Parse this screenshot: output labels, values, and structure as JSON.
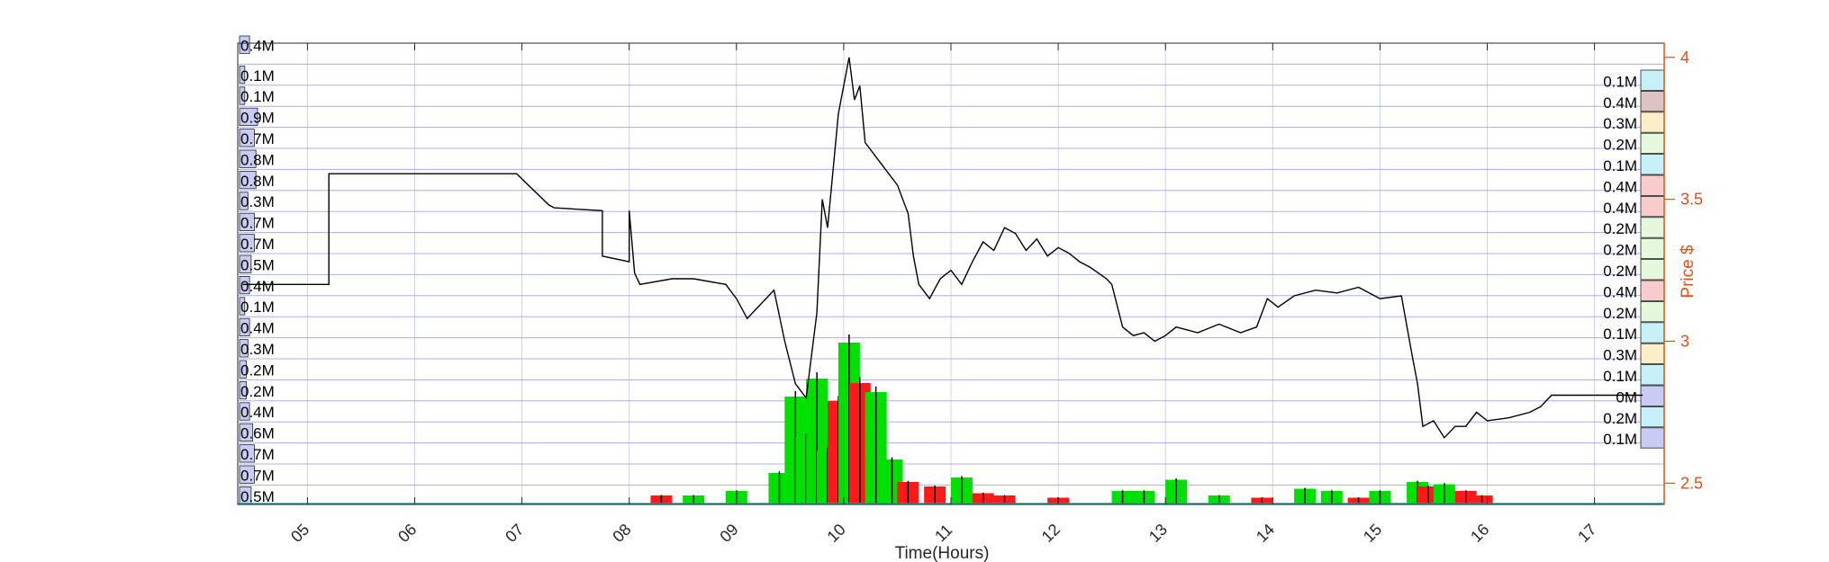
{
  "chart_data": {
    "type": "line",
    "xlabel": "Time(Hours)",
    "ylabel_right": "Price $",
    "x_range_hours": [
      4.35,
      17.65
    ],
    "y_range_price": [
      2.425,
      4.05
    ],
    "x_ticks": [
      "05",
      "06",
      "07",
      "08",
      "09",
      "10",
      "11",
      "12",
      "13",
      "14",
      "15",
      "16",
      "17"
    ],
    "y_ticks": [
      "2.5",
      "3",
      "3.5",
      "4"
    ],
    "grid": true,
    "colors": {
      "axis_right": "#d95319",
      "grid": "#a8b0e8",
      "price_line": "#000000",
      "volume_up": "#00e000",
      "volume_down": "#ff1a1a",
      "volume_profile_left": "#c8ccf4"
    },
    "left_volume_profile": {
      "description": "Volume-by-price bins along left edge, top to bottom",
      "labels": [
        "0.4M",
        "0.1M",
        "0.1M",
        "0.9M",
        "0.7M",
        "0.8M",
        "0.8M",
        "0.3M",
        "0.7M",
        "0.7M",
        "0.5M",
        "0.4M",
        "0.1M",
        "0.4M",
        "0.3M",
        "0.2M",
        "0.2M",
        "0.4M",
        "0.6M",
        "0.7M",
        "0.7M",
        "0.5M"
      ],
      "values_m": [
        0.4,
        0.1,
        0.1,
        0.9,
        0.7,
        0.8,
        0.8,
        0.3,
        0.7,
        0.7,
        0.5,
        0.4,
        0.1,
        0.4,
        0.3,
        0.2,
        0.2,
        0.4,
        0.6,
        0.7,
        0.7,
        0.5
      ]
    },
    "right_volume_profile": {
      "labels": [
        "0.1M",
        "0.4M",
        "0.3M",
        "0.2M",
        "0.1M",
        "0.4M",
        "0.4M",
        "0.2M",
        "0.2M",
        "0.2M",
        "0.4M",
        "0.2M",
        "0.1M",
        "0.3M",
        "0.1M",
        "0M",
        "0.2M",
        "0.1M"
      ],
      "values_m": [
        0.1,
        0.4,
        0.3,
        0.2,
        0.1,
        0.4,
        0.4,
        0.2,
        0.2,
        0.2,
        0.4,
        0.2,
        0.1,
        0.3,
        0.1,
        0.0,
        0.2,
        0.1
      ],
      "colors": [
        "#c8f0f8",
        "#dcc4c4",
        "#fbeec8",
        "#e4f8dc",
        "#c8f0f8",
        "#f8cccc",
        "#f8cccc",
        "#e4f8dc",
        "#e4f8dc",
        "#e4f8dc",
        "#f8cccc",
        "#e4f8dc",
        "#c8f0f8",
        "#fbeec8",
        "#c8f0f8",
        "#c8ccf4",
        "#c8f0f8",
        "#c8ccf4"
      ]
    },
    "price_series": [
      [
        4.4,
        3.2
      ],
      [
        5.2,
        3.2
      ],
      [
        5.2,
        3.59
      ],
      [
        6.95,
        3.59
      ],
      [
        7.25,
        3.48
      ],
      [
        7.3,
        3.47
      ],
      [
        7.75,
        3.46
      ],
      [
        7.75,
        3.3
      ],
      [
        8.0,
        3.28
      ],
      [
        8.0,
        3.46
      ],
      [
        8.05,
        3.24
      ],
      [
        8.1,
        3.2
      ],
      [
        8.4,
        3.22
      ],
      [
        8.6,
        3.22
      ],
      [
        8.9,
        3.2
      ],
      [
        9.0,
        3.15
      ],
      [
        9.1,
        3.08
      ],
      [
        9.2,
        3.12
      ],
      [
        9.35,
        3.18
      ],
      [
        9.45,
        3.0
      ],
      [
        9.55,
        2.85
      ],
      [
        9.65,
        2.8
      ],
      [
        9.75,
        3.1
      ],
      [
        9.8,
        3.5
      ],
      [
        9.85,
        3.4
      ],
      [
        9.9,
        3.6
      ],
      [
        9.95,
        3.8
      ],
      [
        10.0,
        3.9
      ],
      [
        10.05,
        4.0
      ],
      [
        10.1,
        3.85
      ],
      [
        10.15,
        3.9
      ],
      [
        10.2,
        3.7
      ],
      [
        10.3,
        3.65
      ],
      [
        10.4,
        3.6
      ],
      [
        10.5,
        3.55
      ],
      [
        10.6,
        3.45
      ],
      [
        10.65,
        3.3
      ],
      [
        10.7,
        3.2
      ],
      [
        10.8,
        3.15
      ],
      [
        10.9,
        3.22
      ],
      [
        11.0,
        3.25
      ],
      [
        11.1,
        3.2
      ],
      [
        11.2,
        3.28
      ],
      [
        11.3,
        3.35
      ],
      [
        11.4,
        3.32
      ],
      [
        11.5,
        3.4
      ],
      [
        11.6,
        3.38
      ],
      [
        11.7,
        3.32
      ],
      [
        11.8,
        3.36
      ],
      [
        11.9,
        3.3
      ],
      [
        12.0,
        3.33
      ],
      [
        12.1,
        3.31
      ],
      [
        12.2,
        3.28
      ],
      [
        12.3,
        3.26
      ],
      [
        12.45,
        3.22
      ],
      [
        12.5,
        3.2
      ],
      [
        12.6,
        3.05
      ],
      [
        12.7,
        3.02
      ],
      [
        12.8,
        3.03
      ],
      [
        12.9,
        3.0
      ],
      [
        13.0,
        3.02
      ],
      [
        13.1,
        3.05
      ],
      [
        13.3,
        3.03
      ],
      [
        13.5,
        3.06
      ],
      [
        13.7,
        3.03
      ],
      [
        13.85,
        3.05
      ],
      [
        13.95,
        3.15
      ],
      [
        14.05,
        3.12
      ],
      [
        14.2,
        3.16
      ],
      [
        14.4,
        3.18
      ],
      [
        14.6,
        3.17
      ],
      [
        14.8,
        3.19
      ],
      [
        15.0,
        3.15
      ],
      [
        15.2,
        3.16
      ],
      [
        15.3,
        2.95
      ],
      [
        15.35,
        2.85
      ],
      [
        15.4,
        2.7
      ],
      [
        15.5,
        2.72
      ],
      [
        15.6,
        2.66
      ],
      [
        15.7,
        2.7
      ],
      [
        15.8,
        2.7
      ],
      [
        15.9,
        2.75
      ],
      [
        16.0,
        2.72
      ],
      [
        16.2,
        2.73
      ],
      [
        16.4,
        2.75
      ],
      [
        16.5,
        2.77
      ],
      [
        16.6,
        2.81
      ],
      [
        17.45,
        2.81
      ]
    ],
    "volume_bars": [
      [
        8.3,
        0.2,
        "down"
      ],
      [
        8.6,
        0.2,
        "up"
      ],
      [
        9.0,
        0.3,
        "up"
      ],
      [
        9.4,
        0.7,
        "up"
      ],
      [
        9.55,
        2.4,
        "up"
      ],
      [
        9.65,
        1.5,
        "up"
      ],
      [
        9.75,
        2.8,
        "up"
      ],
      [
        9.85,
        1.2,
        "up"
      ],
      [
        9.95,
        2.3,
        "down"
      ],
      [
        10.05,
        3.6,
        "up"
      ],
      [
        10.15,
        2.7,
        "down"
      ],
      [
        10.3,
        2.5,
        "up"
      ],
      [
        10.45,
        1.0,
        "up"
      ],
      [
        10.6,
        0.5,
        "down"
      ],
      [
        10.85,
        0.4,
        "down"
      ],
      [
        11.1,
        0.6,
        "up"
      ],
      [
        11.3,
        0.25,
        "down"
      ],
      [
        11.5,
        0.2,
        "down"
      ],
      [
        12.0,
        0.15,
        "down"
      ],
      [
        12.6,
        0.3,
        "up"
      ],
      [
        12.8,
        0.3,
        "up"
      ],
      [
        13.1,
        0.55,
        "up"
      ],
      [
        13.5,
        0.2,
        "up"
      ],
      [
        13.9,
        0.15,
        "down"
      ],
      [
        14.3,
        0.35,
        "up"
      ],
      [
        14.55,
        0.3,
        "up"
      ],
      [
        14.8,
        0.15,
        "down"
      ],
      [
        15.0,
        0.3,
        "up"
      ],
      [
        15.35,
        0.5,
        "up"
      ],
      [
        15.45,
        0.4,
        "down"
      ],
      [
        15.6,
        0.45,
        "up"
      ],
      [
        15.8,
        0.3,
        "down"
      ],
      [
        15.95,
        0.2,
        "down"
      ]
    ],
    "volume_max_m": 4.0
  }
}
